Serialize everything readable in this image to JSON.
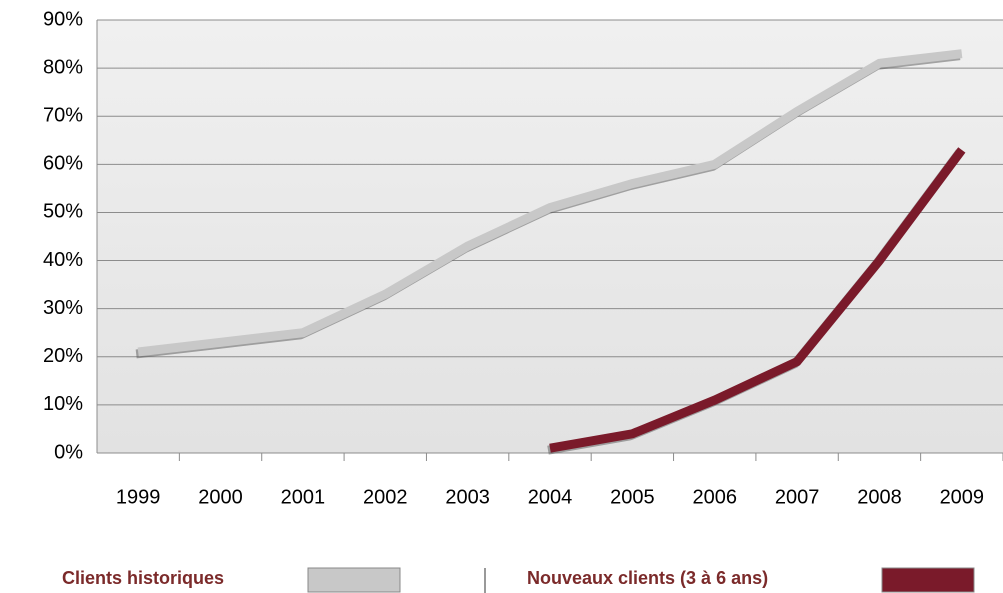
{
  "chart_data": {
    "type": "line",
    "categories": [
      "1999",
      "2000",
      "2001",
      "2002",
      "2003",
      "2004",
      "2005",
      "2006",
      "2007",
      "2008",
      "2009"
    ],
    "series": [
      {
        "name": "Clients historiques",
        "color": "#c8c8c8",
        "values": [
          21,
          23,
          25,
          33,
          43,
          51,
          56,
          60,
          71,
          81,
          83
        ]
      },
      {
        "name": "Nouveaux clients (3 à 6 ans)",
        "color": "#7a1a2a",
        "values": [
          null,
          null,
          null,
          null,
          null,
          1,
          4,
          11,
          19,
          40,
          63
        ]
      }
    ],
    "ylim": [
      0,
      90
    ],
    "yticks": [
      {
        "value": 0,
        "label": "0%"
      },
      {
        "value": 10,
        "label": "10%"
      },
      {
        "value": 20,
        "label": "20%"
      },
      {
        "value": 30,
        "label": "30%"
      },
      {
        "value": 40,
        "label": "40%"
      },
      {
        "value": 50,
        "label": "50%"
      },
      {
        "value": 60,
        "label": "60%"
      },
      {
        "value": 70,
        "label": "70%"
      },
      {
        "value": 80,
        "label": "80%"
      },
      {
        "value": 90,
        "label": "90%"
      }
    ],
    "grid": true,
    "legend": "bottom"
  }
}
